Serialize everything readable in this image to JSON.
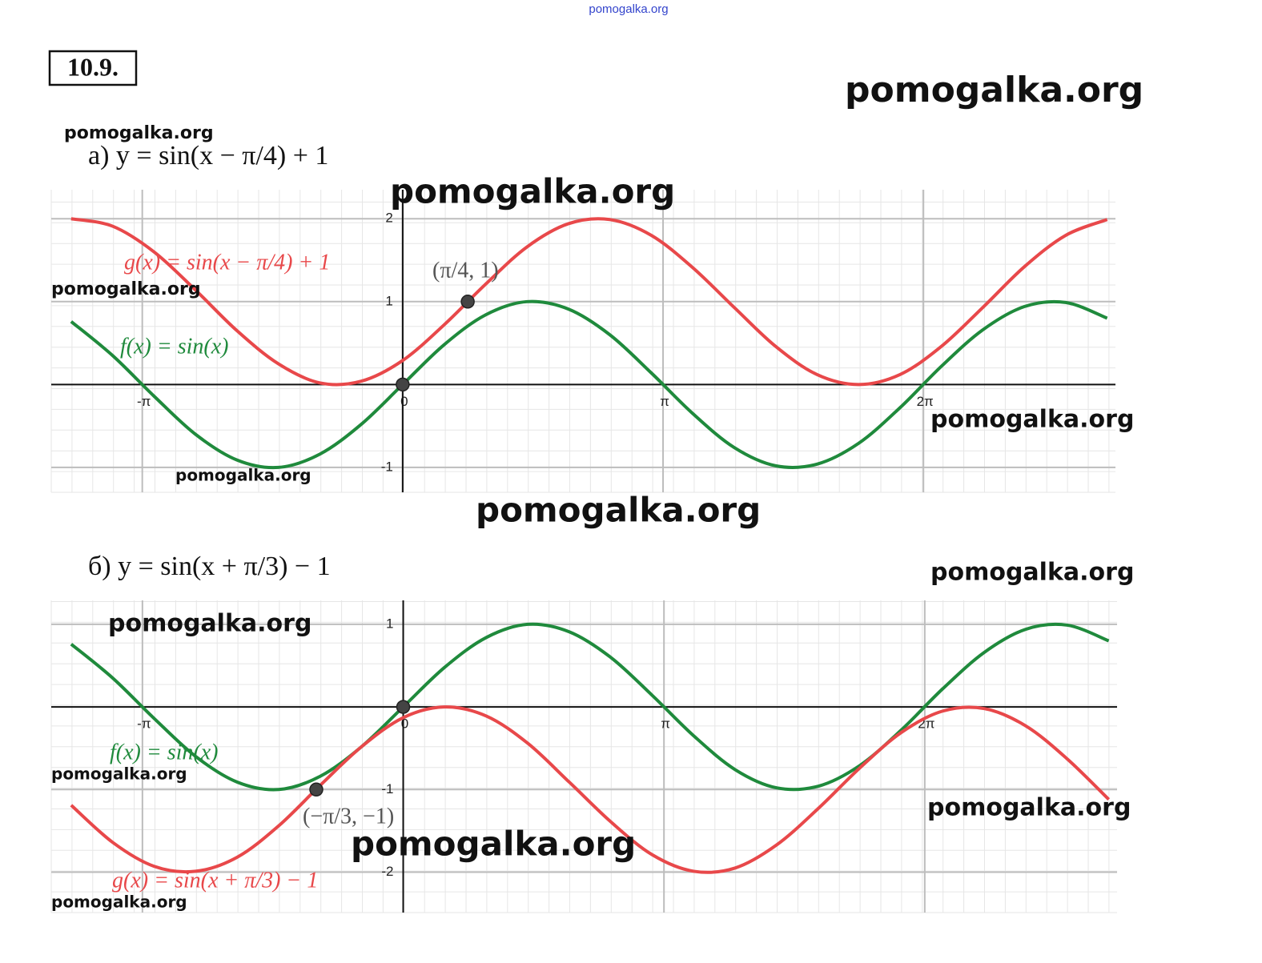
{
  "header_watermark": "pomogalka.org",
  "problem_number": "10.9.",
  "watermarks": [
    "pomogalka.org",
    "pomogalka.org",
    "pomogalka.org",
    "pomogalka.org",
    "pomogalka.org",
    "pomogalka.org",
    "pomogalka.org",
    "pomogalka.org",
    "pomogalka.org",
    "pomogalka.org",
    "pomogalka.org",
    "pomogalka.org",
    "pomogalka.org"
  ],
  "chart_data": [
    {
      "type": "line",
      "title": "а) y = sin(x − π/4) + 1",
      "x": [
        -4,
        -3.5,
        -3,
        -2.5,
        -2,
        -1.5,
        -1,
        -0.5,
        0,
        0.5,
        1,
        1.5,
        2,
        2.5,
        3,
        3.5,
        4,
        4.5,
        5,
        5.5,
        6,
        6.5,
        7,
        7.5,
        8,
        8.5
      ],
      "series": [
        {
          "name": "g(x) = sin(x − π/4) + 1",
          "color": "#e8484a",
          "values": [
            2.0,
            1.91,
            1.6,
            1.14,
            0.65,
            0.25,
            0.02,
            0.04,
            0.29,
            0.72,
            1.21,
            1.66,
            1.94,
            1.99,
            1.8,
            1.41,
            0.93,
            0.46,
            0.12,
            0.0,
            0.12,
            0.46,
            0.93,
            1.42,
            1.8,
            1.99
          ]
        },
        {
          "name": "f(x) = sin(x)",
          "color": "#1f8a3c",
          "values": [
            0.76,
            0.35,
            -0.14,
            -0.6,
            -0.91,
            -1.0,
            -0.84,
            -0.48,
            0,
            0.48,
            0.84,
            1.0,
            0.91,
            0.6,
            0.14,
            -0.35,
            -0.76,
            -0.98,
            -0.96,
            -0.71,
            -0.28,
            0.22,
            0.66,
            0.94,
            0.99,
            0.8
          ]
        }
      ],
      "points": [
        {
          "x": 0.785,
          "y": 1,
          "label": "(π/4, 1)"
        },
        {
          "x": 0,
          "y": 0
        }
      ],
      "xlim": [
        -4.24,
        8.6
      ],
      "ylim": [
        -1.3,
        2.35
      ],
      "xticks": [
        {
          "value": -3.14159,
          "label": "-π"
        },
        0,
        {
          "value": 3.14159,
          "label": "π"
        },
        {
          "value": 6.28319,
          "label": "2π"
        }
      ],
      "yticks": [
        -1,
        1,
        2
      ],
      "grid": true
    },
    {
      "type": "line",
      "title": "б) y = sin(x + π/3) − 1",
      "x": [
        -4,
        -3.5,
        -3,
        -2.5,
        -2,
        -1.5,
        -1,
        -0.5,
        0,
        0.5,
        1,
        1.5,
        2,
        2.5,
        3,
        3.5,
        4,
        4.5,
        5,
        5.5,
        6,
        6.5,
        7,
        7.5,
        8,
        8.5
      ],
      "series": [
        {
          "name": "f(x) = sin(x)",
          "color": "#1f8a3c",
          "values": [
            0.76,
            0.35,
            -0.14,
            -0.6,
            -0.91,
            -1.0,
            -0.84,
            -0.48,
            0,
            0.48,
            0.84,
            1.0,
            0.91,
            0.6,
            0.14,
            -0.35,
            -0.76,
            -0.98,
            -0.96,
            -0.71,
            -0.28,
            0.22,
            0.66,
            0.94,
            0.99,
            0.8
          ]
        },
        {
          "name": "g(x) = sin(x + π/3) − 1",
          "color": "#e8484a",
          "values": [
            -1.19,
            -1.64,
            -1.93,
            -1.99,
            -1.82,
            -1.44,
            -0.95,
            -0.48,
            -0.13,
            0.0,
            -0.11,
            -0.44,
            -0.91,
            -1.39,
            -1.79,
            -1.99,
            -1.95,
            -1.67,
            -1.23,
            -0.74,
            -0.31,
            -0.05,
            -0.02,
            -0.23,
            -0.63,
            -1.12
          ]
        }
      ],
      "points": [
        {
          "x": -1.047,
          "y": -1,
          "label": "(−π/3, −1)"
        },
        {
          "x": 0,
          "y": 0
        }
      ],
      "xlim": [
        -4.24,
        8.6
      ],
      "ylim": [
        -2.49,
        1.29
      ],
      "xticks": [
        {
          "value": -3.14159,
          "label": "-π"
        },
        0,
        {
          "value": 3.14159,
          "label": "π"
        },
        {
          "value": 6.28319,
          "label": "2π"
        }
      ],
      "yticks": [
        -2,
        -1,
        1
      ],
      "grid": true
    }
  ]
}
